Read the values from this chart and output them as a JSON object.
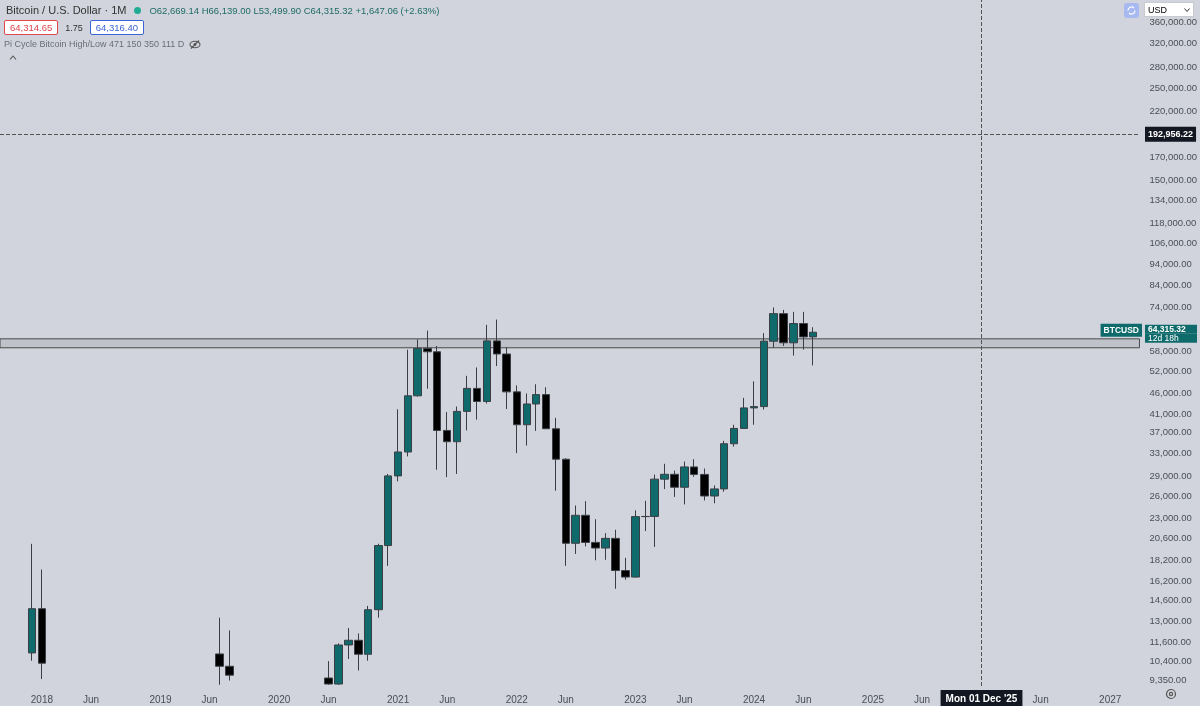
{
  "chart_data": {
    "type": "candlestick",
    "title": "Bitcoin / U.S. Dollar · 1M",
    "subtitle": "O62,669.14 H66,139.00 L53,499.90 C64,315.32 +1,647.06 (+2.63%)",
    "annotations": [
      "64,314.65",
      "1.75",
      "64,316.40",
      "Pi Cycle Bitcoin High/Low 471 150 350 111 D",
      "USD",
      "BTCUSD",
      "64,315.32",
      "12d 18h"
    ],
    "log": true,
    "xlim": [
      "2017-08-25",
      "2027-04-01"
    ],
    "xticks": [
      {
        "value": "2018-01",
        "label": "2018"
      },
      {
        "value": "2018-06",
        "label": "Jun"
      },
      {
        "value": "2019-01",
        "label": "2019"
      },
      {
        "value": "2019-06",
        "label": "Jun"
      },
      {
        "value": "2020-01",
        "label": "2020"
      },
      {
        "value": "2020-06",
        "label": "Jun"
      },
      {
        "value": "2021-01",
        "label": "2021"
      },
      {
        "value": "2021-06",
        "label": "Jun"
      },
      {
        "value": "2022-01",
        "label": "2022"
      },
      {
        "value": "2022-06",
        "label": "Jun"
      },
      {
        "value": "2023-01",
        "label": "2023"
      },
      {
        "value": "2023-06",
        "label": "Jun"
      },
      {
        "value": "2024-01",
        "label": "2024"
      },
      {
        "value": "2024-06",
        "label": "Jun"
      },
      {
        "value": "2025-01",
        "label": "2025"
      },
      {
        "value": "2025-06",
        "label": "Jun"
      },
      {
        "value": "2026-06",
        "label": "Jun"
      },
      {
        "value": "2027-01",
        "label": "2027"
      }
    ],
    "ylim": [
      9040,
      406000
    ],
    "yticks": [
      {
        "value": 360000,
        "label": "360,000.00"
      },
      {
        "value": 320000,
        "label": "320,000.00"
      },
      {
        "value": 280000,
        "label": "280,000.00"
      },
      {
        "value": 250000,
        "label": "250,000.00"
      },
      {
        "value": 220000,
        "label": "220,000.00"
      },
      {
        "value": 170000,
        "label": "170,000.00"
      },
      {
        "value": 150000,
        "label": "150,000.00"
      },
      {
        "value": 134000,
        "label": "134,000.00"
      },
      {
        "value": 118000,
        "label": "118,000.00"
      },
      {
        "value": 106000,
        "label": "106,000.00"
      },
      {
        "value": 94000,
        "label": "94,000.00"
      },
      {
        "value": 84000,
        "label": "84,000.00"
      },
      {
        "value": 74000,
        "label": "74,000.00"
      },
      {
        "value": 58000,
        "label": "58,000.00"
      },
      {
        "value": 52000,
        "label": "52,000.00"
      },
      {
        "value": 46000,
        "label": "46,000.00"
      },
      {
        "value": 41000,
        "label": "41,000.00"
      },
      {
        "value": 37000,
        "label": "37,000.00"
      },
      {
        "value": 33000,
        "label": "33,000.00"
      },
      {
        "value": 29000,
        "label": "29,000.00"
      },
      {
        "value": 26000,
        "label": "26,000.00"
      },
      {
        "value": 23000,
        "label": "23,000.00"
      },
      {
        "value": 20600,
        "label": "20,600.00"
      },
      {
        "value": 18200,
        "label": "18,200.00"
      },
      {
        "value": 16200,
        "label": "16,200.00"
      },
      {
        "value": 14600,
        "label": "14,600.00"
      },
      {
        "value": 13000,
        "label": "13,000.00"
      },
      {
        "value": 11600,
        "label": "11,600.00"
      },
      {
        "value": 10400,
        "label": "10,400.00"
      },
      {
        "value": 9350,
        "label": "9,350.00"
      }
    ],
    "ref_lines": [
      {
        "axis": "y",
        "value": 192956.22,
        "label": "192,956.22",
        "line_style": "dashed",
        "color": "#555555"
      },
      {
        "axis": "x",
        "value": "2025-12-01",
        "label": "Mon 01 Dec '25",
        "line_style": "dashed",
        "color": "#555555"
      }
    ],
    "bands": [
      {
        "axis": "y",
        "from": 59000,
        "to": 62000,
        "color": "#bfc2c9"
      }
    ],
    "x": [
      "2017-12",
      "2018-01",
      "2019-07",
      "2019-08",
      "2020-06",
      "2020-07",
      "2020-08",
      "2020-09",
      "2020-10",
      "2020-11",
      "2020-12",
      "2021-01",
      "2021-02",
      "2021-03",
      "2021-04",
      "2021-05",
      "2021-06",
      "2021-07",
      "2021-08",
      "2021-09",
      "2021-10",
      "2021-11",
      "2021-12",
      "2022-01",
      "2022-02",
      "2022-03",
      "2022-04",
      "2022-05",
      "2022-06",
      "2022-07",
      "2022-08",
      "2022-09",
      "2022-10",
      "2022-11",
      "2022-12",
      "2023-01",
      "2023-02",
      "2023-03",
      "2023-04",
      "2023-05",
      "2023-06",
      "2023-07",
      "2023-08",
      "2023-09",
      "2023-10",
      "2023-11",
      "2023-12",
      "2024-01",
      "2024-02",
      "2024-03",
      "2024-04",
      "2024-05",
      "2024-06",
      "2024-07"
    ],
    "ohlc": [
      [
        10860,
        19890,
        10400,
        13880
      ],
      [
        13880,
        17250,
        9400,
        10260
      ],
      [
        10800,
        13200,
        9100,
        10085
      ],
      [
        10085,
        12300,
        9320,
        9600
      ],
      [
        9450,
        10380,
        9100,
        9140
      ],
      [
        9140,
        11450,
        9100,
        11350
      ],
      [
        11350,
        12470,
        10500,
        11650
      ],
      [
        11650,
        12100,
        9850,
        10780
      ],
      [
        10780,
        14100,
        10400,
        13800
      ],
      [
        13800,
        19900,
        13200,
        19700
      ],
      [
        19700,
        29300,
        17600,
        28990
      ],
      [
        28990,
        41950,
        28130,
        33100
      ],
      [
        33100,
        58350,
        32300,
        45200
      ],
      [
        45200,
        61800,
        45000,
        58800
      ],
      [
        58800,
        64900,
        47000,
        57700
      ],
      [
        57700,
        59600,
        30000,
        37300
      ],
      [
        37300,
        41300,
        28800,
        35040
      ],
      [
        35040,
        42600,
        29300,
        41460
      ],
      [
        41460,
        50500,
        37300,
        47100
      ],
      [
        47100,
        52900,
        39600,
        43800
      ],
      [
        43800,
        67000,
        43300,
        61300
      ],
      [
        61300,
        69000,
        53300,
        57000
      ],
      [
        57000,
        59100,
        42000,
        46200
      ],
      [
        46200,
        47900,
        32900,
        38500
      ],
      [
        38500,
        45800,
        34300,
        43200
      ],
      [
        43200,
        48200,
        37200,
        45500
      ],
      [
        45500,
        47400,
        37600,
        37650
      ],
      [
        37650,
        40000,
        26700,
        31800
      ],
      [
        31800,
        31950,
        17600,
        19950
      ],
      [
        19950,
        24600,
        18800,
        23300
      ],
      [
        23300,
        25200,
        19600,
        20050
      ],
      [
        20050,
        22800,
        18150,
        19430
      ],
      [
        19430,
        21100,
        18200,
        20500
      ],
      [
        20500,
        21500,
        15500,
        17150
      ],
      [
        17150,
        18400,
        16300,
        16540
      ],
      [
        16540,
        23950,
        16500,
        23130
      ],
      [
        23130,
        25250,
        21350,
        23150
      ],
      [
        23150,
        29200,
        19550,
        28470
      ],
      [
        28470,
        31000,
        26950,
        29250
      ],
      [
        29250,
        29850,
        25800,
        27220
      ],
      [
        27220,
        31400,
        24750,
        30470
      ],
      [
        30470,
        31800,
        28850,
        29230
      ],
      [
        29230,
        30200,
        25300,
        25930
      ],
      [
        25930,
        27500,
        24900,
        26970
      ],
      [
        26970,
        35200,
        26550,
        34650
      ],
      [
        34650,
        38500,
        34100,
        37720
      ],
      [
        37720,
        44700,
        37600,
        42270
      ],
      [
        42270,
        48970,
        38500,
        42580
      ],
      [
        42580,
        64000,
        41880,
        61180
      ],
      [
        61180,
        73800,
        59000,
        71300
      ],
      [
        71300,
        72800,
        59600,
        60650
      ],
      [
        60650,
        72000,
        56500,
        67500
      ],
      [
        67500,
        72000,
        58400,
        62669.14
      ],
      [
        62669.14,
        66139.0,
        53499.9,
        64315.32
      ]
    ],
    "colors": [
      "#0f6b6b",
      "#000000",
      "#000000",
      "#000000",
      "#000000",
      "#0f6b6b",
      "#0f6b6b",
      "#000000",
      "#0f6b6b",
      "#0f6b6b",
      "#0f6b6b",
      "#0f6b6b",
      "#0f6b6b",
      "#0f6b6b",
      "#000000",
      "#000000",
      "#000000",
      "#0f6b6b",
      "#0f6b6b",
      "#000000",
      "#0f6b6b",
      "#000000",
      "#000000",
      "#000000",
      "#0f6b6b",
      "#0f6b6b",
      "#000000",
      "#000000",
      "#000000",
      "#0f6b6b",
      "#000000",
      "#000000",
      "#0f6b6b",
      "#000000",
      "#000000",
      "#0f6b6b",
      "#0f6b6b",
      "#0f6b6b",
      "#0f6b6b",
      "#000000",
      "#0f6b6b",
      "#000000",
      "#000000",
      "#0f6b6b",
      "#0f6b6b",
      "#0f6b6b",
      "#0f6b6b",
      "#0f6b6b",
      "#0f6b6b",
      "#0f6b6b",
      "#000000",
      "#0f6b6b",
      "#000000",
      "#0f6b6b"
    ]
  }
}
